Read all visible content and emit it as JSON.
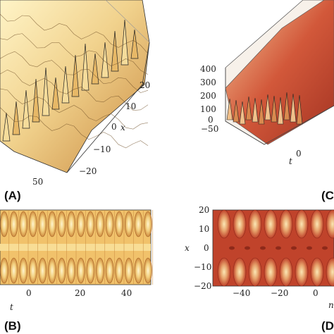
{
  "panels": {
    "A": {
      "label": "(A)",
      "x_axis_label": "x",
      "x_ticks": [
        "20",
        "10",
        "0",
        "−10",
        "−20"
      ],
      "t_ticks": [
        "50"
      ]
    },
    "B": {
      "label": "(B)",
      "t_axis_label": "t",
      "t_ticks": [
        "0",
        "20",
        "40"
      ]
    },
    "C": {
      "label": "(C",
      "t_axis_label": "t",
      "z_ticks": [
        "400",
        "300",
        "200",
        "100",
        "0",
        "−50"
      ],
      "t_ticks": [
        "0"
      ]
    },
    "D": {
      "label": "(D",
      "x_axis_label": "x",
      "x_ticks": [
        "20",
        "10",
        "0",
        "−10",
        "−20"
      ],
      "t_ticks": [
        "−40",
        "−20",
        "0"
      ],
      "t_axis_label_partial": "n"
    }
  },
  "colors": {
    "ochre_light": "#f6e6a8",
    "ochre_mid": "#e9b764",
    "ochre_dark": "#b97830",
    "red_bg": "#c0432b",
    "red_dark": "#8e2a1a"
  }
}
